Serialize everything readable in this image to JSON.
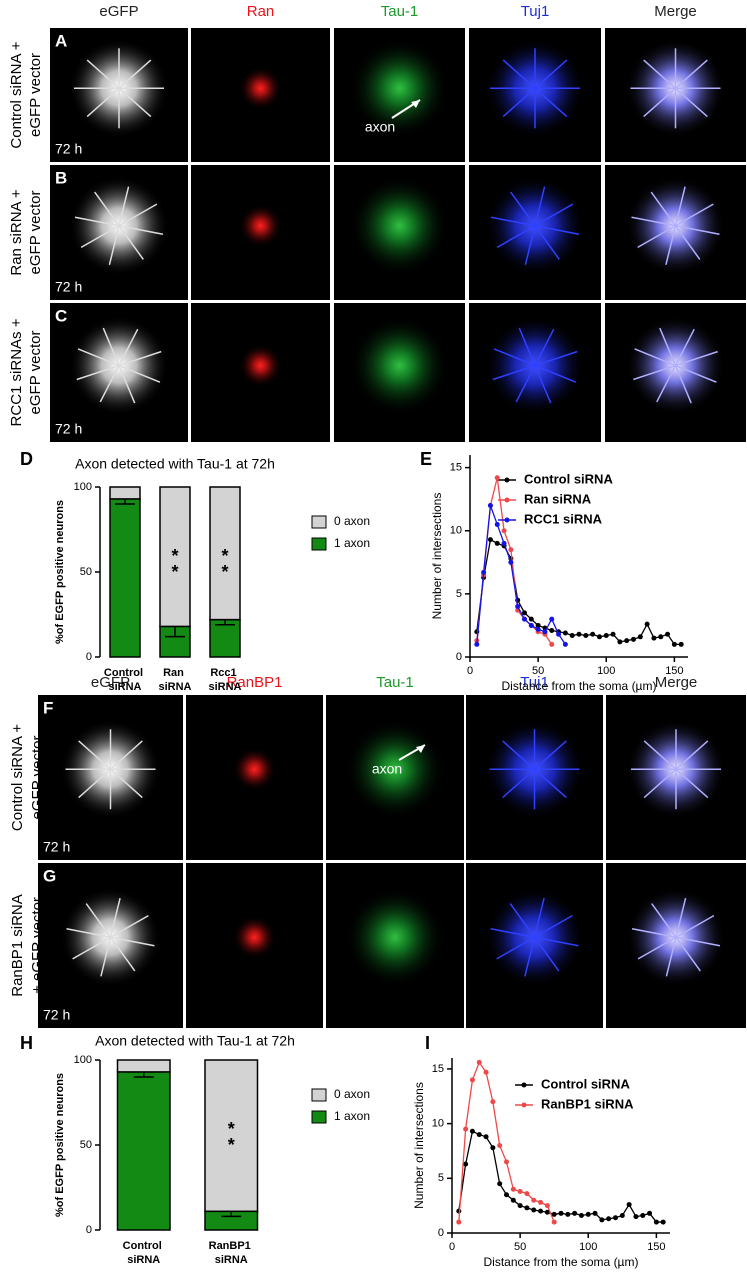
{
  "panels_top": {
    "columns": [
      "eGFP",
      "Ran",
      "Tau-1",
      "Tuj1",
      "Merge"
    ],
    "column_colors": [
      "#222222",
      "#e8141a",
      "#1a9a2a",
      "#1c2fd6",
      "#222222"
    ],
    "rows": [
      {
        "letter": "A",
        "label": [
          "Control siRNA +",
          "eGFP vector"
        ],
        "time": "72 h"
      },
      {
        "letter": "B",
        "label": [
          "Ran siRNA +",
          "eGFP vector"
        ],
        "time": "72 h"
      },
      {
        "letter": "C",
        "label": [
          "RCC1 siRNAs +",
          "eGFP vector"
        ],
        "time": "72 h"
      }
    ],
    "annotation": "axon"
  },
  "panels_bottom": {
    "columns": [
      "eGFP",
      "RanBP1",
      "Tau-1",
      "Tuj1",
      "Merge"
    ],
    "column_colors": [
      "#222222",
      "#e8141a",
      "#1a9a2a",
      "#1c2fd6",
      "#222222"
    ],
    "rows": [
      {
        "letter": "F",
        "label": [
          "Control siRNA +",
          "eGFP vector"
        ],
        "time": "72 h"
      },
      {
        "letter": "G",
        "label": [
          "RanBP1 siRNA",
          "+ eGFP vector"
        ],
        "time": "72 h"
      }
    ],
    "annotation": "axon"
  },
  "chart_data": [
    {
      "type": "stacked_bar",
      "letter": "D",
      "title": "Axon detected with Tau-1 at 72h",
      "y_label": "%of EGFP positive neurons",
      "categories": [
        "Control siRNA",
        "Ran siRNA",
        "Rcc1 siRNA"
      ],
      "series": [
        {
          "name": "1 axon",
          "color": "#138a13",
          "values": [
            93,
            18,
            22
          ],
          "errors": [
            3,
            6,
            3
          ]
        },
        {
          "name": "0 axon",
          "color": "#d3d3d3",
          "values": [
            7,
            82,
            78
          ]
        }
      ],
      "significance": [
        null,
        "**",
        "**"
      ],
      "ylim": [
        0,
        100
      ],
      "yticks": [
        0,
        50,
        100
      ]
    },
    {
      "type": "line",
      "letter": "E",
      "y_label": "Number of intersections",
      "x_label": "Distance from the soma (µm)",
      "xlim": [
        0,
        160
      ],
      "ylim": [
        0,
        16
      ],
      "xticks": [
        0,
        50,
        100,
        150
      ],
      "yticks": [
        0,
        5,
        10,
        15
      ],
      "series": [
        {
          "name": "Control siRNA",
          "color": "#000000",
          "x": [
            5,
            10,
            15,
            20,
            25,
            30,
            35,
            40,
            45,
            50,
            55,
            60,
            65,
            70,
            75,
            80,
            85,
            90,
            95,
            100,
            105,
            110,
            115,
            120,
            125,
            130,
            135,
            140,
            145,
            150,
            155
          ],
          "values": [
            2.0,
            6.3,
            9.3,
            9.0,
            8.8,
            7.8,
            4.5,
            3.5,
            3.0,
            2.5,
            2.3,
            2.1,
            2.0,
            1.9,
            1.7,
            1.8,
            1.7,
            1.8,
            1.6,
            1.7,
            1.8,
            1.2,
            1.3,
            1.4,
            1.6,
            2.6,
            1.5,
            1.6,
            1.8,
            1.0,
            1.0
          ]
        },
        {
          "name": "Ran siRNA",
          "color": "#f04848",
          "x": [
            5,
            10,
            15,
            20,
            25,
            30,
            35,
            40,
            45,
            50,
            55,
            60
          ],
          "values": [
            1.3,
            6.5,
            12.0,
            14.2,
            10.0,
            8.5,
            3.7,
            3.0,
            2.5,
            2.0,
            1.8,
            1.0
          ]
        },
        {
          "name": "RCC1 siRNA",
          "color": "#1414e6",
          "x": [
            5,
            10,
            15,
            20,
            25,
            30,
            35,
            40,
            45,
            50,
            55,
            60,
            65,
            70
          ],
          "values": [
            1.0,
            6.7,
            12.0,
            10.5,
            9.0,
            7.5,
            4.0,
            3.0,
            2.5,
            2.2,
            2.0,
            3.0,
            1.8,
            1.0
          ]
        }
      ]
    },
    {
      "type": "stacked_bar",
      "letter": "H",
      "title": "Axon detected with Tau-1 at 72h",
      "y_label": "%of EGFP positive neurons",
      "categories": [
        "Control siRNA",
        "RanBP1 siRNA"
      ],
      "series": [
        {
          "name": "1 axon",
          "color": "#138a13",
          "values": [
            93,
            11
          ],
          "errors": [
            3,
            3
          ]
        },
        {
          "name": "0 axon",
          "color": "#d3d3d3",
          "values": [
            7,
            89
          ]
        }
      ],
      "significance": [
        null,
        "**"
      ],
      "ylim": [
        0,
        100
      ],
      "yticks": [
        0,
        50,
        100
      ]
    },
    {
      "type": "line",
      "letter": "I",
      "y_label": "Number of intersections",
      "x_label": "Distance from the soma (µm)",
      "xlim": [
        0,
        160
      ],
      "ylim": [
        0,
        16
      ],
      "xticks": [
        0,
        50,
        100,
        150
      ],
      "yticks": [
        0,
        5,
        10,
        15
      ],
      "series": [
        {
          "name": "Control siRNA",
          "color": "#000000",
          "x": [
            5,
            10,
            15,
            20,
            25,
            30,
            35,
            40,
            45,
            50,
            55,
            60,
            65,
            70,
            75,
            80,
            85,
            90,
            95,
            100,
            105,
            110,
            115,
            120,
            125,
            130,
            135,
            140,
            145,
            150,
            155
          ],
          "values": [
            2.0,
            6.3,
            9.3,
            9.0,
            8.8,
            7.8,
            4.5,
            3.5,
            3.0,
            2.5,
            2.3,
            2.1,
            2.0,
            1.9,
            1.7,
            1.8,
            1.7,
            1.8,
            1.6,
            1.7,
            1.8,
            1.2,
            1.3,
            1.4,
            1.6,
            2.6,
            1.5,
            1.6,
            1.8,
            1.0,
            1.0
          ]
        },
        {
          "name": "RanBP1 siRNA",
          "color": "#f04848",
          "x": [
            5,
            10,
            15,
            20,
            25,
            30,
            35,
            40,
            45,
            50,
            55,
            60,
            65,
            70,
            75
          ],
          "values": [
            1.0,
            9.5,
            14.0,
            15.6,
            14.7,
            12.0,
            8.0,
            6.5,
            4.0,
            3.8,
            3.6,
            3.0,
            2.8,
            2.5,
            1.0
          ]
        }
      ]
    }
  ]
}
